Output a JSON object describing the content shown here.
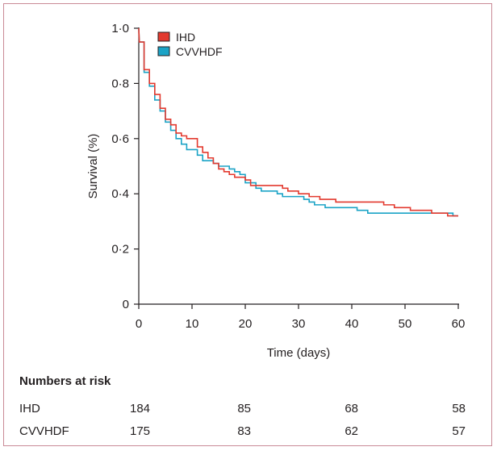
{
  "chart_data": {
    "type": "line",
    "subtype": "kaplan-meier step",
    "xlabel": "Time (days)",
    "ylabel": "Survival (%)",
    "xlim": [
      0,
      60
    ],
    "ylim": [
      0,
      1.0
    ],
    "xticks": [
      "0",
      "10",
      "20",
      "30",
      "40",
      "50",
      "60"
    ],
    "yticks": [
      "0",
      "0·2",
      "0·4",
      "0·6",
      "0·8",
      "1·0"
    ],
    "grid": false,
    "legend_position": "top-left",
    "series": [
      {
        "name": "IHD",
        "color": "#e33a2f",
        "points": [
          [
            0,
            1.0
          ],
          [
            0.1,
            0.95
          ],
          [
            1,
            0.95
          ],
          [
            1,
            0.85
          ],
          [
            2,
            0.85
          ],
          [
            2,
            0.8
          ],
          [
            3,
            0.8
          ],
          [
            3,
            0.76
          ],
          [
            4,
            0.76
          ],
          [
            4,
            0.71
          ],
          [
            5,
            0.71
          ],
          [
            5,
            0.67
          ],
          [
            6,
            0.67
          ],
          [
            6,
            0.65
          ],
          [
            7,
            0.65
          ],
          [
            7,
            0.62
          ],
          [
            8,
            0.62
          ],
          [
            8,
            0.61
          ],
          [
            9,
            0.61
          ],
          [
            9,
            0.6
          ],
          [
            11,
            0.6
          ],
          [
            11,
            0.57
          ],
          [
            12,
            0.57
          ],
          [
            12,
            0.55
          ],
          [
            13,
            0.55
          ],
          [
            13,
            0.53
          ],
          [
            14,
            0.53
          ],
          [
            14,
            0.51
          ],
          [
            15,
            0.51
          ],
          [
            15,
            0.49
          ],
          [
            16,
            0.49
          ],
          [
            16,
            0.48
          ],
          [
            17,
            0.48
          ],
          [
            17,
            0.47
          ],
          [
            18,
            0.47
          ],
          [
            18,
            0.46
          ],
          [
            20,
            0.46
          ],
          [
            20,
            0.45
          ],
          [
            21,
            0.45
          ],
          [
            21,
            0.43
          ],
          [
            27,
            0.43
          ],
          [
            27,
            0.42
          ],
          [
            28,
            0.42
          ],
          [
            28,
            0.41
          ],
          [
            30,
            0.41
          ],
          [
            30,
            0.4
          ],
          [
            32,
            0.4
          ],
          [
            32,
            0.39
          ],
          [
            34,
            0.39
          ],
          [
            34,
            0.38
          ],
          [
            37,
            0.38
          ],
          [
            37,
            0.37
          ],
          [
            46,
            0.37
          ],
          [
            46,
            0.36
          ],
          [
            48,
            0.36
          ],
          [
            48,
            0.35
          ],
          [
            51,
            0.35
          ],
          [
            51,
            0.34
          ],
          [
            55,
            0.34
          ],
          [
            55,
            0.33
          ],
          [
            58,
            0.33
          ],
          [
            58,
            0.32
          ],
          [
            60,
            0.32
          ]
        ]
      },
      {
        "name": "CVVHDF",
        "color": "#1ba3c6",
        "points": [
          [
            0,
            1.0
          ],
          [
            0.1,
            0.95
          ],
          [
            1,
            0.95
          ],
          [
            1,
            0.84
          ],
          [
            2,
            0.84
          ],
          [
            2,
            0.79
          ],
          [
            3,
            0.79
          ],
          [
            3,
            0.74
          ],
          [
            4,
            0.74
          ],
          [
            4,
            0.7
          ],
          [
            5,
            0.7
          ],
          [
            5,
            0.66
          ],
          [
            6,
            0.66
          ],
          [
            6,
            0.63
          ],
          [
            7,
            0.63
          ],
          [
            7,
            0.6
          ],
          [
            8,
            0.6
          ],
          [
            8,
            0.58
          ],
          [
            9,
            0.58
          ],
          [
            9,
            0.56
          ],
          [
            11,
            0.56
          ],
          [
            11,
            0.54
          ],
          [
            12,
            0.54
          ],
          [
            12,
            0.52
          ],
          [
            14,
            0.52
          ],
          [
            14,
            0.51
          ],
          [
            15,
            0.51
          ],
          [
            15,
            0.5
          ],
          [
            17,
            0.5
          ],
          [
            17,
            0.49
          ],
          [
            18,
            0.49
          ],
          [
            18,
            0.48
          ],
          [
            19,
            0.48
          ],
          [
            19,
            0.47
          ],
          [
            20,
            0.47
          ],
          [
            20,
            0.44
          ],
          [
            22,
            0.44
          ],
          [
            22,
            0.42
          ],
          [
            23,
            0.42
          ],
          [
            23,
            0.41
          ],
          [
            26,
            0.41
          ],
          [
            26,
            0.4
          ],
          [
            27,
            0.4
          ],
          [
            27,
            0.39
          ],
          [
            31,
            0.39
          ],
          [
            31,
            0.38
          ],
          [
            32,
            0.38
          ],
          [
            32,
            0.37
          ],
          [
            33,
            0.37
          ],
          [
            33,
            0.36
          ],
          [
            35,
            0.36
          ],
          [
            35,
            0.35
          ],
          [
            41,
            0.35
          ],
          [
            41,
            0.34
          ],
          [
            43,
            0.34
          ],
          [
            43,
            0.33
          ],
          [
            59,
            0.33
          ],
          [
            59,
            0.32
          ],
          [
            60,
            0.32
          ]
        ]
      }
    ],
    "numbers_at_risk": {
      "heading": "Numbers at risk",
      "times": [
        0,
        20,
        40,
        60
      ],
      "rows": [
        {
          "label": "IHD",
          "values": [
            "184",
            "85",
            "68",
            "58"
          ]
        },
        {
          "label": "CVVHDF",
          "values": [
            "175",
            "83",
            "62",
            "57"
          ]
        }
      ]
    }
  }
}
